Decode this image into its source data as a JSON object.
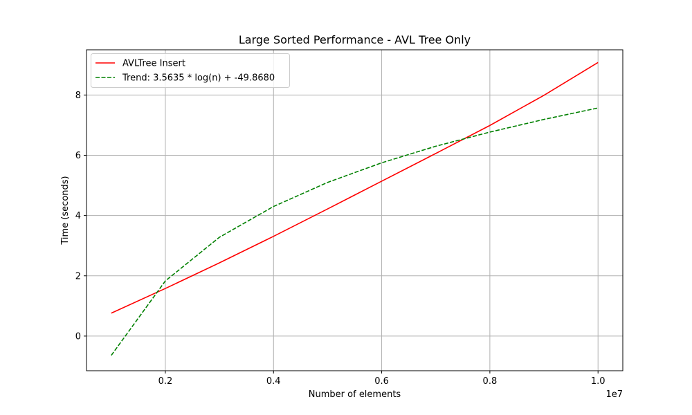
{
  "chart_data": {
    "type": "line",
    "title": "Large Sorted Performance - AVL Tree Only",
    "xlabel": "Number of elements",
    "ylabel": "Time (seconds)",
    "x_offset_label": "1e7",
    "xlim": [
      0.0542,
      1.0458
    ],
    "ylim": [
      -1.15,
      9.5
    ],
    "x_ticks": [
      0.2,
      0.4,
      0.6,
      0.8,
      1.0
    ],
    "x_tick_labels": [
      "0.2",
      "0.4",
      "0.6",
      "0.8",
      "1.0"
    ],
    "y_ticks": [
      0,
      2,
      4,
      6,
      8
    ],
    "y_tick_labels": [
      "0",
      "2",
      "4",
      "6",
      "8"
    ],
    "grid": true,
    "legend_position": "top-left",
    "x": [
      0.1,
      0.2,
      0.3,
      0.4,
      0.5,
      0.6,
      0.7,
      0.8,
      0.9,
      1.0
    ],
    "series": [
      {
        "name": "AVLTree Insert",
        "color": "#ff0000",
        "style": "solid",
        "values": [
          0.76,
          1.58,
          2.43,
          3.31,
          4.22,
          5.14,
          6.06,
          6.99,
          7.99,
          9.08
        ]
      },
      {
        "name": "Trend: 3.5635 * log(n) + -49.8680",
        "color": "#008000",
        "style": "dashed",
        "values": [
          -0.64,
          1.83,
          3.28,
          4.3,
          5.1,
          5.75,
          6.3,
          6.77,
          7.19,
          7.57
        ]
      }
    ]
  }
}
